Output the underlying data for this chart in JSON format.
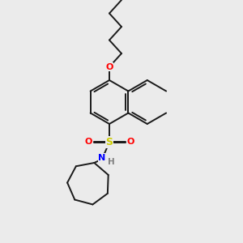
{
  "background_color": "#ebebeb",
  "bond_color": "#1a1a1a",
  "atom_colors": {
    "O": "#ff0000",
    "S": "#cccc00",
    "N": "#0000ff",
    "H": "#808080",
    "C": "#1a1a1a"
  },
  "figsize": [
    3.0,
    3.0
  ],
  "dpi": 100,
  "lw": 1.4
}
